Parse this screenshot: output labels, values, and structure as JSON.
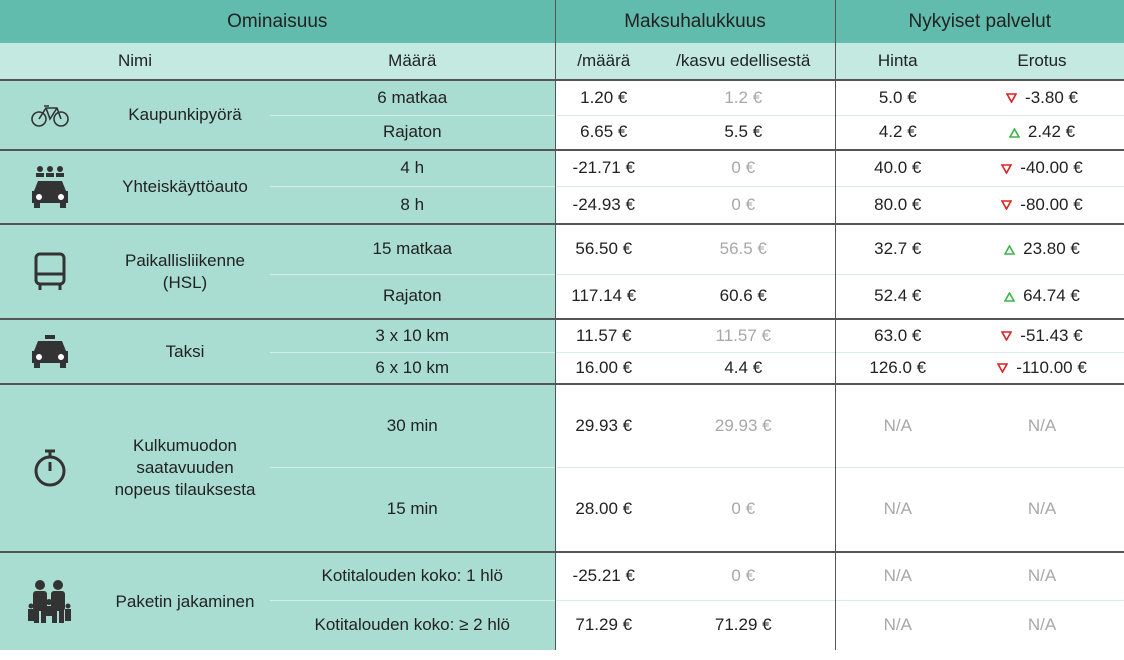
{
  "header": {
    "groups": [
      "Ominaisuus",
      "Maksuhalukkuus",
      "Nykyiset palvelut"
    ],
    "columns": [
      "Nimi",
      "Määrä",
      "/määrä",
      "/kasvu edellisestä",
      "Hinta",
      "Erotus"
    ]
  },
  "table": {
    "groups": [
      {
        "name": "Kaupunkipyörä",
        "rows": [
          {
            "amount": "6 matkaa",
            "per": "1.20 €",
            "growth": "1.2 €",
            "price": "5.0 €",
            "diff": "-3.80 €"
          },
          {
            "amount": "Rajaton",
            "per": "6.65 €",
            "growth": "5.5 €",
            "price": "4.2 €",
            "diff": "2.42 €"
          }
        ]
      },
      {
        "name": "Yhteiskäyttöauto",
        "rows": [
          {
            "amount": "4 h",
            "per": "-21.71 €",
            "growth": "0 €",
            "price": "40.0 €",
            "diff": "-40.00 €"
          },
          {
            "amount": "8 h",
            "per": "-24.93 €",
            "growth": "0 €",
            "price": "80.0 €",
            "diff": "-80.00 €"
          }
        ]
      },
      {
        "name": "Paikallisliikenne (HSL)",
        "rows": [
          {
            "amount": "15 matkaa",
            "per": "56.50 €",
            "growth": "56.5 €",
            "price": "32.7 €",
            "diff": "23.80 €"
          },
          {
            "amount": "Rajaton",
            "per": "117.14 €",
            "growth": "60.6 €",
            "price": "52.4 €",
            "diff": "64.74 €"
          }
        ]
      },
      {
        "name": "Taksi",
        "rows": [
          {
            "amount": "3 x 10 km",
            "per": "11.57 €",
            "growth": "11.57 €",
            "price": "63.0 €",
            "diff": "-51.43 €"
          },
          {
            "amount": "6 x 10 km",
            "per": "16.00 €",
            "growth": "4.4 €",
            "price": "126.0 €",
            "diff": "-110.00 €"
          }
        ]
      },
      {
        "name": "Kulkumuodon saatavuuden nopeus tilauksesta",
        "rows": [
          {
            "amount": "30 min",
            "per": "29.93 €",
            "growth": "29.93 €",
            "price": "N/A",
            "diff": "N/A"
          },
          {
            "amount": "15 min",
            "per": "28.00 €",
            "growth": "0 €",
            "price": "N/A",
            "diff": "N/A"
          }
        ]
      },
      {
        "name": "Paketin jakaminen",
        "rows": [
          {
            "amount": "Kotitalouden koko: 1 hlö",
            "per": "-25.21 €",
            "growth": "0 €",
            "price": "N/A",
            "diff": "N/A"
          },
          {
            "amount": "Kotitalouden koko: ≥ 2 hlö",
            "per": "71.29 €",
            "growth": "71.29 €",
            "price": "N/A",
            "diff": "N/A"
          }
        ]
      }
    ]
  }
}
